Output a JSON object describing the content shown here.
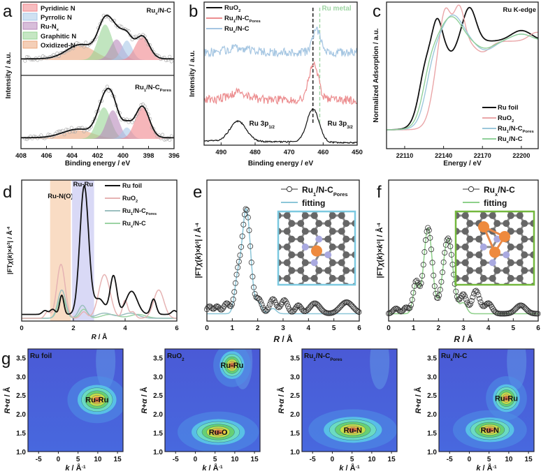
{
  "panel_letters": [
    "a",
    "b",
    "c",
    "d",
    "e",
    "f",
    "g"
  ],
  "chart_data": [
    {
      "panel": "a",
      "type": "area",
      "xlabel": "Binding energy / eV",
      "ylabel": "Intensity / a.u.",
      "xlim": [
        408,
        396
      ],
      "xticks": [
        408,
        406,
        404,
        402,
        400,
        398,
        396
      ],
      "legend": [
        {
          "name": "Pyridinic N",
          "color": "#f0868c"
        },
        {
          "name": "Pyrrolic N",
          "color": "#a9c8e8"
        },
        {
          "name": [
            "Ru-N",
            {
              "sub": "x"
            }
          ],
          "key": "Ru-Nx",
          "color": "#b889bb"
        },
        {
          "name": "Graphitic N",
          "color": "#98d494"
        },
        {
          "name": "Oxidized-N",
          "color": "#eba77e"
        }
      ],
      "subplots": [
        {
          "label": [
            "Ru",
            {
              "sub": "x"
            },
            "/N-C"
          ],
          "components": [
            {
              "key": "Oxidized-N",
              "center": 403.3,
              "height": 0.25,
              "width": 1.1
            },
            {
              "key": "Graphitic N",
              "center": 401.4,
              "height": 0.62,
              "width": 0.55
            },
            {
              "key": "Ru-Nx",
              "center": 400.5,
              "height": 0.36,
              "width": 0.5
            },
            {
              "key": "Pyrrolic N",
              "center": 399.7,
              "height": 0.34,
              "width": 0.42
            },
            {
              "key": "Pyridinic N",
              "center": 398.5,
              "height": 0.4,
              "width": 0.55
            }
          ]
        },
        {
          "label": [
            "Ru",
            {
              "sub": "1"
            },
            "/N-C",
            {
              "sub": "Pores"
            }
          ],
          "components": [
            {
              "key": "Oxidized-N",
              "center": 403.5,
              "height": 0.15,
              "width": 1.2
            },
            {
              "key": "Graphitic N",
              "center": 401.5,
              "height": 0.55,
              "width": 0.55
            },
            {
              "key": "Ru-Nx",
              "center": 400.8,
              "height": 0.5,
              "width": 0.5
            },
            {
              "key": "Pyrrolic N",
              "center": 399.7,
              "height": 0.2,
              "width": 0.38
            },
            {
              "key": "Pyridinic N",
              "center": 398.5,
              "height": 0.55,
              "width": 0.55
            }
          ]
        }
      ]
    },
    {
      "panel": "b",
      "type": "line",
      "xlabel": "Binding energy / eV",
      "ylabel": "Intensity / a.u.",
      "xlim": [
        495,
        450
      ],
      "xticks": [
        490,
        480,
        470,
        460,
        450
      ],
      "series": [
        {
          "name": [
            "RuO",
            {
              "sub": "2"
            }
          ],
          "color": "#111111",
          "offset": 0.05,
          "noise": 0.015,
          "peaks": [
            [
              485,
              0.42,
              2.4
            ],
            [
              463,
              0.7,
              1.8
            ]
          ]
        },
        {
          "name": [
            "Ru",
            {
              "sub": "1"
            },
            "/N-C",
            {
              "sub": "Pores"
            }
          ],
          "color": "#ec8e90",
          "offset": 0.95,
          "noise": 0.09,
          "peaks": [
            [
              485,
              0.15,
              3
            ],
            [
              462.8,
              0.75,
              1.4
            ]
          ]
        },
        {
          "name": [
            "Ru",
            {
              "sub": "x"
            },
            "/N-C"
          ],
          "color": "#a5c6e2",
          "offset": 1.95,
          "noise": 0.09,
          "peaks": [
            [
              485,
              0.1,
              3
            ],
            [
              462,
              0.45,
              1.2
            ]
          ]
        }
      ],
      "reference_lines": [
        {
          "x": 463,
          "color": "#111111",
          "label": ""
        },
        {
          "x": 461,
          "color": "#9fd6a4",
          "label": "Ru metal"
        }
      ],
      "annotations": [
        {
          "text": [
            "Ru 3p",
            {
              "sub": "1/2"
            }
          ],
          "x": 478,
          "y": 0.5
        },
        {
          "text": [
            "Ru 3p",
            {
              "sub": "3/2"
            }
          ],
          "x": 455,
          "y": 0.5
        }
      ]
    },
    {
      "panel": "c",
      "type": "line",
      "title": "Ru K-edge",
      "xlabel": "Energy / eV",
      "ylabel": "Normalized Adsorption / a.u.",
      "xlim": [
        22096,
        22213
      ],
      "xticks": [
        22110,
        22140,
        22170,
        22200
      ],
      "series": [
        {
          "name": "Ru foil",
          "color": "#111111",
          "edge": 22122,
          "edge_width": 3.2,
          "peaks": [
            [
              22135,
              0.28,
              3.5
            ],
            [
              22146,
              -0.12,
              4
            ],
            [
              22160,
              0.38,
              5
            ],
            [
              22200,
              0.12,
              8
            ]
          ]
        },
        {
          "name": [
            "RuO",
            {
              "sub": "2"
            }
          ],
          "color": "#eaa6a8",
          "edge": 22132,
          "edge_width": 3,
          "peaks": [
            [
              22141,
              0.42,
              4
            ],
            [
              22152,
              0.4,
              4
            ],
            [
              22170,
              -0.12,
              6
            ],
            [
              22212,
              0.1,
              6
            ]
          ]
        },
        {
          "name": [
            "Ru",
            {
              "sub": "1"
            },
            "/N-C",
            {
              "sub": "Pores"
            }
          ],
          "color": "#9cc7db",
          "edge": 22127,
          "edge_width": 3.5,
          "peaks": [
            [
              22147,
              0.3,
              8
            ],
            [
              22172,
              -0.1,
              7
            ],
            [
              22200,
              0.08,
              8
            ]
          ]
        },
        {
          "name": [
            "Ru",
            {
              "sub": "x"
            },
            "/N-C"
          ],
          "color": "#90d09a",
          "edge": 22125,
          "edge_width": 3.5,
          "peaks": [
            [
              22146,
              0.28,
              8
            ],
            [
              22172,
              -0.08,
              7
            ],
            [
              22200,
              0.08,
              8
            ]
          ]
        }
      ]
    },
    {
      "panel": "d",
      "type": "line",
      "xlabel": [
        {
          "i": "R"
        },
        " / Å"
      ],
      "ylabel": [
        "|FT",
        {
          "i": "χ"
        },
        "(",
        {
          "i": "k"
        },
        ")×",
        {
          "i": "k"
        },
        {
          "sup": "3"
        },
        "| / Å",
        {
          "sup": "-4"
        }
      ],
      "xlim": [
        0,
        6
      ],
      "xticks": [
        0,
        2,
        4,
        6
      ],
      "bands": [
        {
          "label": "Ru-N(O)",
          "from": 1.1,
          "to": 1.9,
          "color": "#f9dcc4"
        },
        {
          "label": "Ru-Ru",
          "from": 1.95,
          "to": 2.8,
          "color": "#d9d9f6"
        }
      ],
      "series": [
        {
          "name": "Ru foil",
          "color": "#111111",
          "offset": 0.03,
          "peaks": [
            [
              0.9,
              0.03,
              0.1
            ],
            [
              1.2,
              0.04,
              0.1
            ],
            [
              1.55,
              0.15,
              0.08
            ],
            [
              2.42,
              1.0,
              0.17
            ],
            [
              3.0,
              0.12,
              0.2
            ],
            [
              3.55,
              0.3,
              0.13
            ],
            [
              4.25,
              0.18,
              0.22
            ],
            [
              5.1,
              0.12,
              0.1
            ],
            [
              5.9,
              0.03,
              0.1
            ]
          ]
        },
        {
          "name": [
            "RuO",
            {
              "sub": "2"
            }
          ],
          "color": "#e6b3b3",
          "offset": 0.0,
          "peaks": [
            [
              1.0,
              0.05,
              0.1
            ],
            [
              1.52,
              0.42,
              0.16
            ],
            [
              2.4,
              0.05,
              0.12
            ],
            [
              3.2,
              0.34,
              0.22
            ],
            [
              4.0,
              0.14,
              0.1
            ],
            [
              4.3,
              0.05,
              0.1
            ],
            [
              5.3,
              0.22,
              0.2
            ]
          ]
        },
        {
          "name": [
            "Ru",
            {
              "sub": "1"
            },
            "/N-C",
            {
              "sub": "Pores"
            }
          ],
          "color": "#9bbfbf",
          "offset": 0.0,
          "peaks": [
            [
              1.55,
              0.22,
              0.15
            ],
            [
              2.35,
              0.1,
              0.15
            ],
            [
              3.2,
              0.04,
              0.3
            ],
            [
              4.2,
              0.04,
              0.3
            ]
          ]
        },
        {
          "name": [
            "Ru",
            {
              "sub": "x"
            },
            "/N-C"
          ],
          "color": "#9cd3a4",
          "offset": 0.0,
          "peaks": [
            [
              1.55,
              0.17,
              0.15
            ],
            [
              2.4,
              0.07,
              0.15
            ],
            [
              3.4,
              0.03,
              0.3
            ],
            [
              4.5,
              0.03,
              0.3
            ]
          ]
        }
      ]
    },
    {
      "panel": "e",
      "type": "scatter",
      "xlabel": [
        {
          "i": "R"
        },
        " / Å"
      ],
      "ylabel": [
        "|FT",
        {
          "i": "χ"
        },
        "(",
        {
          "i": "k"
        },
        ")×",
        {
          "i": "k"
        },
        {
          "sup": "3"
        },
        "| / Å",
        {
          "sup": "-4"
        }
      ],
      "xlim": [
        0,
        6
      ],
      "xticks": [
        0,
        1,
        2,
        3,
        4,
        5,
        6
      ],
      "series": [
        {
          "name": [
            "Ru",
            {
              "sub": "1"
            },
            "/N-C",
            {
              "sub": "Pores"
            }
          ],
          "marker": "open-circle",
          "color": "#333333",
          "peaks": [
            [
              0.1,
              0.07,
              0.1
            ],
            [
              0.4,
              0.07,
              0.1
            ],
            [
              0.78,
              0.1,
              0.12
            ],
            [
              1.2,
              0.3,
              0.12
            ],
            [
              1.55,
              1.0,
              0.17
            ],
            [
              2.05,
              0.13,
              0.12
            ],
            [
              2.6,
              0.14,
              0.13
            ],
            [
              3.05,
              0.13,
              0.13
            ],
            [
              3.6,
              0.08,
              0.12
            ],
            [
              4.25,
              0.1,
              0.2
            ],
            [
              5.5,
              0.11,
              0.25
            ]
          ]
        },
        {
          "name": "fitting",
          "color": "#8cc6d8",
          "max_R": 3.3,
          "peaks": [
            [
              1.2,
              0.28,
              0.12
            ],
            [
              1.55,
              1.0,
              0.17
            ],
            [
              2.05,
              0.1,
              0.12
            ],
            [
              2.6,
              0.05,
              0.13
            ]
          ]
        }
      ],
      "inset": {
        "type": "structure",
        "border": "#7cc9e0",
        "metal_atoms": 1
      }
    },
    {
      "panel": "f",
      "type": "scatter",
      "xlabel": [
        {
          "i": "R"
        },
        " / Å"
      ],
      "ylabel": [
        "|FT",
        {
          "i": "χ"
        },
        "(",
        {
          "i": "k"
        },
        ")×",
        {
          "i": "k"
        },
        {
          "sup": "3"
        },
        "| / Å",
        {
          "sup": "-4"
        }
      ],
      "xlim": [
        0,
        6
      ],
      "xticks": [
        0,
        1,
        2,
        3,
        4,
        5,
        6
      ],
      "series": [
        {
          "name": [
            "Ru",
            {
              "sub": "x"
            },
            "/N-C"
          ],
          "marker": "open-circle",
          "color": "#333333",
          "peaks": [
            [
              0.3,
              0.05,
              0.12
            ],
            [
              0.7,
              0.06,
              0.1
            ],
            [
              1.1,
              0.3,
              0.12
            ],
            [
              1.58,
              0.82,
              0.17
            ],
            [
              2.38,
              0.72,
              0.2
            ],
            [
              3.0,
              0.18,
              0.13
            ],
            [
              3.5,
              0.22,
              0.15
            ],
            [
              4.0,
              0.1,
              0.15
            ],
            [
              5.3,
              0.08,
              0.2
            ]
          ]
        },
        {
          "name": "fitting",
          "color": "#8ed08a",
          "max_R": 3.3,
          "peaks": [
            [
              1.1,
              0.28,
              0.12
            ],
            [
              1.58,
              0.82,
              0.17
            ],
            [
              2.38,
              0.72,
              0.2
            ],
            [
              3.0,
              0.1,
              0.13
            ]
          ]
        }
      ],
      "inset": {
        "type": "structure",
        "border": "#74b83e",
        "metal_atoms": 3
      }
    },
    {
      "panel": "g",
      "type": "heatmap",
      "xlabel": [
        {
          "i": "k"
        },
        " / Å",
        {
          "sup": "-1"
        }
      ],
      "ylabel": [
        {
          "i": "R+α"
        },
        " / Å"
      ],
      "xlim": [
        -7.7,
        16.4
      ],
      "ylim": [
        1.0,
        3.73
      ],
      "xticks": [
        -5,
        0,
        5,
        10,
        15
      ],
      "yticks": [
        "1.0",
        "1.5",
        "2.0",
        "2.5",
        "3.0",
        "3.5"
      ],
      "maps": [
        {
          "title": "Ru foil",
          "peaks": [
            {
              "label": "Ru-Ru",
              "k": 9.8,
              "R": 2.38,
              "k_width": 6.0,
              "R_width": 0.48,
              "intensity": 1.0
            }
          ]
        },
        {
          "title": [
            "RuO",
            {
              "sub": "2"
            }
          ],
          "peaks": [
            {
              "label": "Ru-Ru",
              "k": 9.3,
              "R": 3.3,
              "k_width": 3.8,
              "R_width": 0.45,
              "intensity": 1.0
            },
            {
              "label": "Ru-O",
              "k": 5.8,
              "R": 1.52,
              "k_width": 8.5,
              "R_width": 0.42,
              "intensity": 0.85
            }
          ]
        },
        {
          "title": [
            "Ru",
            {
              "sub": "1"
            },
            "/N-C",
            {
              "sub": "Pores"
            }
          ],
          "peaks": [
            {
              "label": "Ru-N",
              "k": 5.2,
              "R": 1.58,
              "k_width": 9.0,
              "R_width": 0.42,
              "intensity": 1.0
            }
          ]
        },
        {
          "title": [
            "Ru",
            {
              "sub": "x"
            },
            "/N-C"
          ],
          "peaks": [
            {
              "label": "Ru-Ru",
              "k": 9.4,
              "R": 2.42,
              "k_width": 4.2,
              "R_width": 0.45,
              "intensity": 0.95
            },
            {
              "label": "Ru-N",
              "k": 5.2,
              "R": 1.58,
              "k_width": 7.5,
              "R_width": 0.4,
              "intensity": 1.0
            }
          ]
        }
      ]
    }
  ]
}
